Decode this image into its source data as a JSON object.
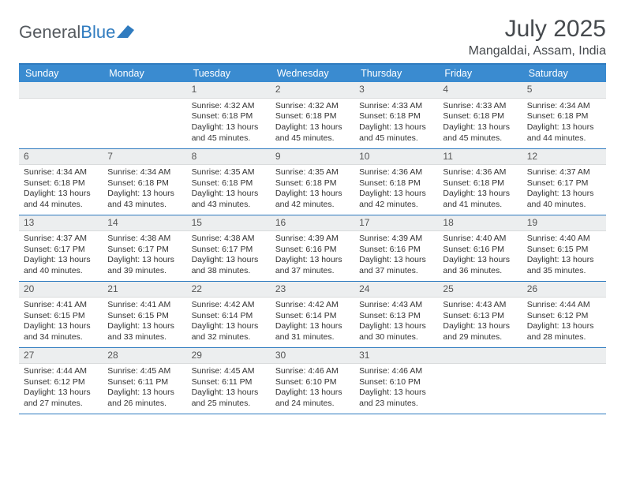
{
  "logo": {
    "text_gray": "General",
    "text_blue": "Blue"
  },
  "header": {
    "month_title": "July 2025",
    "location": "Mangaldai, Assam, India"
  },
  "colors": {
    "header_bg": "#3a8bd0",
    "header_text": "#ffffff",
    "rule": "#2f7bbf",
    "daynum_bg": "#eceeef",
    "body_text": "#333333",
    "logo_gray": "#555a5f",
    "logo_blue": "#2f7bbf",
    "page_bg": "#ffffff"
  },
  "typography": {
    "title_fontsize_pt": 22,
    "location_fontsize_pt": 12,
    "dayname_fontsize_pt": 9,
    "cell_fontsize_pt": 8
  },
  "calendar": {
    "type": "table",
    "day_names": [
      "Sunday",
      "Monday",
      "Tuesday",
      "Wednesday",
      "Thursday",
      "Friday",
      "Saturday"
    ],
    "weeks": [
      [
        null,
        null,
        {
          "n": "1",
          "sunrise": "4:32 AM",
          "sunset": "6:18 PM",
          "daylight": "13 hours and 45 minutes."
        },
        {
          "n": "2",
          "sunrise": "4:32 AM",
          "sunset": "6:18 PM",
          "daylight": "13 hours and 45 minutes."
        },
        {
          "n": "3",
          "sunrise": "4:33 AM",
          "sunset": "6:18 PM",
          "daylight": "13 hours and 45 minutes."
        },
        {
          "n": "4",
          "sunrise": "4:33 AM",
          "sunset": "6:18 PM",
          "daylight": "13 hours and 45 minutes."
        },
        {
          "n": "5",
          "sunrise": "4:34 AM",
          "sunset": "6:18 PM",
          "daylight": "13 hours and 44 minutes."
        }
      ],
      [
        {
          "n": "6",
          "sunrise": "4:34 AM",
          "sunset": "6:18 PM",
          "daylight": "13 hours and 44 minutes."
        },
        {
          "n": "7",
          "sunrise": "4:34 AM",
          "sunset": "6:18 PM",
          "daylight": "13 hours and 43 minutes."
        },
        {
          "n": "8",
          "sunrise": "4:35 AM",
          "sunset": "6:18 PM",
          "daylight": "13 hours and 43 minutes."
        },
        {
          "n": "9",
          "sunrise": "4:35 AM",
          "sunset": "6:18 PM",
          "daylight": "13 hours and 42 minutes."
        },
        {
          "n": "10",
          "sunrise": "4:36 AM",
          "sunset": "6:18 PM",
          "daylight": "13 hours and 42 minutes."
        },
        {
          "n": "11",
          "sunrise": "4:36 AM",
          "sunset": "6:18 PM",
          "daylight": "13 hours and 41 minutes."
        },
        {
          "n": "12",
          "sunrise": "4:37 AM",
          "sunset": "6:17 PM",
          "daylight": "13 hours and 40 minutes."
        }
      ],
      [
        {
          "n": "13",
          "sunrise": "4:37 AM",
          "sunset": "6:17 PM",
          "daylight": "13 hours and 40 minutes."
        },
        {
          "n": "14",
          "sunrise": "4:38 AM",
          "sunset": "6:17 PM",
          "daylight": "13 hours and 39 minutes."
        },
        {
          "n": "15",
          "sunrise": "4:38 AM",
          "sunset": "6:17 PM",
          "daylight": "13 hours and 38 minutes."
        },
        {
          "n": "16",
          "sunrise": "4:39 AM",
          "sunset": "6:16 PM",
          "daylight": "13 hours and 37 minutes."
        },
        {
          "n": "17",
          "sunrise": "4:39 AM",
          "sunset": "6:16 PM",
          "daylight": "13 hours and 37 minutes."
        },
        {
          "n": "18",
          "sunrise": "4:40 AM",
          "sunset": "6:16 PM",
          "daylight": "13 hours and 36 minutes."
        },
        {
          "n": "19",
          "sunrise": "4:40 AM",
          "sunset": "6:15 PM",
          "daylight": "13 hours and 35 minutes."
        }
      ],
      [
        {
          "n": "20",
          "sunrise": "4:41 AM",
          "sunset": "6:15 PM",
          "daylight": "13 hours and 34 minutes."
        },
        {
          "n": "21",
          "sunrise": "4:41 AM",
          "sunset": "6:15 PM",
          "daylight": "13 hours and 33 minutes."
        },
        {
          "n": "22",
          "sunrise": "4:42 AM",
          "sunset": "6:14 PM",
          "daylight": "13 hours and 32 minutes."
        },
        {
          "n": "23",
          "sunrise": "4:42 AM",
          "sunset": "6:14 PM",
          "daylight": "13 hours and 31 minutes."
        },
        {
          "n": "24",
          "sunrise": "4:43 AM",
          "sunset": "6:13 PM",
          "daylight": "13 hours and 30 minutes."
        },
        {
          "n": "25",
          "sunrise": "4:43 AM",
          "sunset": "6:13 PM",
          "daylight": "13 hours and 29 minutes."
        },
        {
          "n": "26",
          "sunrise": "4:44 AM",
          "sunset": "6:12 PM",
          "daylight": "13 hours and 28 minutes."
        }
      ],
      [
        {
          "n": "27",
          "sunrise": "4:44 AM",
          "sunset": "6:12 PM",
          "daylight": "13 hours and 27 minutes."
        },
        {
          "n": "28",
          "sunrise": "4:45 AM",
          "sunset": "6:11 PM",
          "daylight": "13 hours and 26 minutes."
        },
        {
          "n": "29",
          "sunrise": "4:45 AM",
          "sunset": "6:11 PM",
          "daylight": "13 hours and 25 minutes."
        },
        {
          "n": "30",
          "sunrise": "4:46 AM",
          "sunset": "6:10 PM",
          "daylight": "13 hours and 24 minutes."
        },
        {
          "n": "31",
          "sunrise": "4:46 AM",
          "sunset": "6:10 PM",
          "daylight": "13 hours and 23 minutes."
        },
        null,
        null
      ]
    ],
    "labels": {
      "sunrise_prefix": "Sunrise: ",
      "sunset_prefix": "Sunset: ",
      "daylight_prefix": "Daylight: "
    }
  }
}
